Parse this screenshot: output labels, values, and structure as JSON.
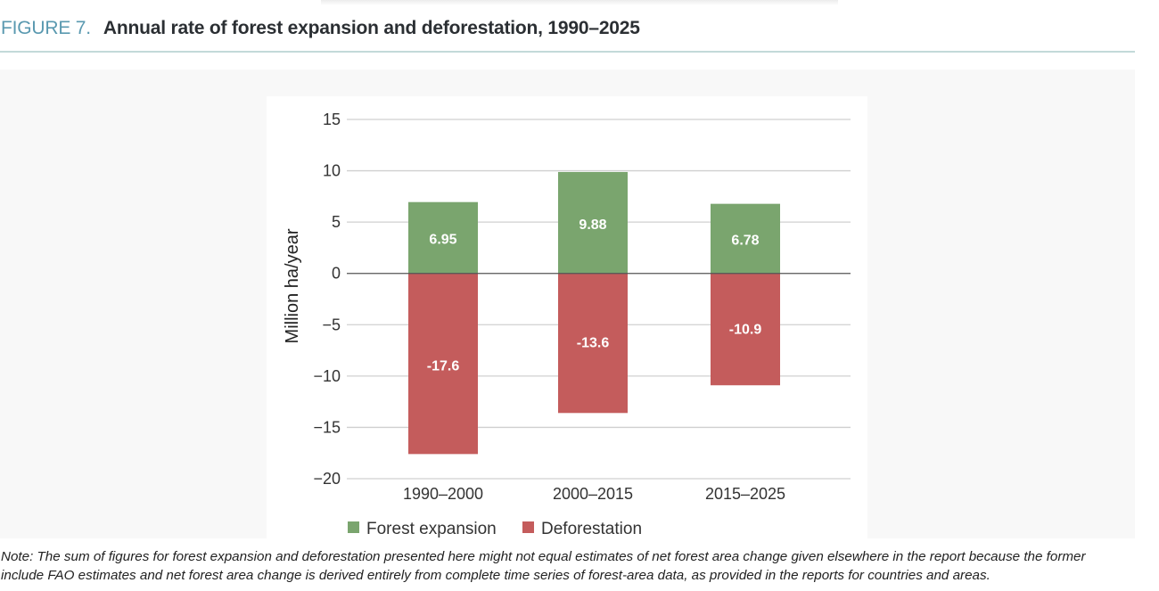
{
  "figure": {
    "number_label": "FIGURE 7.",
    "title": "Annual rate of forest expansion and deforestation, 1990–2025"
  },
  "note": "Note: The sum of figures for forest expansion and deforestation presented here might not equal estimates of net forest area change given elsewhere in the report because the former\ninclude FAO estimates and net forest area change is derived entirely from complete time series of forest-area data, as provided in the reports for countries and areas.",
  "colors": {
    "forest_expansion": "#7aa56e",
    "deforestation": "#c45c5c",
    "figure_number": "#5a99b0"
  },
  "chart_data": {
    "type": "bar",
    "title": "Annual rate of forest expansion and deforestation, 1990–2025",
    "xlabel": "",
    "ylabel": "Million ha/year",
    "ylim": [
      -20,
      15
    ],
    "yticks": [
      15,
      10,
      5,
      0,
      -5,
      -10,
      -15,
      -20
    ],
    "ytick_labels": [
      "15",
      "10",
      "5",
      "0",
      "−5",
      "−10",
      "−15",
      "−20"
    ],
    "grid": true,
    "categories": [
      "1990–2000",
      "2000–2015",
      "2015–2025"
    ],
    "series": [
      {
        "name": "Forest expansion",
        "values": [
          6.95,
          9.88,
          6.78
        ],
        "labels": [
          "6.95",
          "9.88",
          "6.78"
        ],
        "color": "#7aa56e"
      },
      {
        "name": "Deforestation",
        "values": [
          -17.6,
          -13.6,
          -10.9
        ],
        "labels": [
          "-17.6",
          "-13.6",
          "-10.9"
        ],
        "color": "#c45c5c"
      }
    ],
    "legend_position": "bottom-left"
  }
}
